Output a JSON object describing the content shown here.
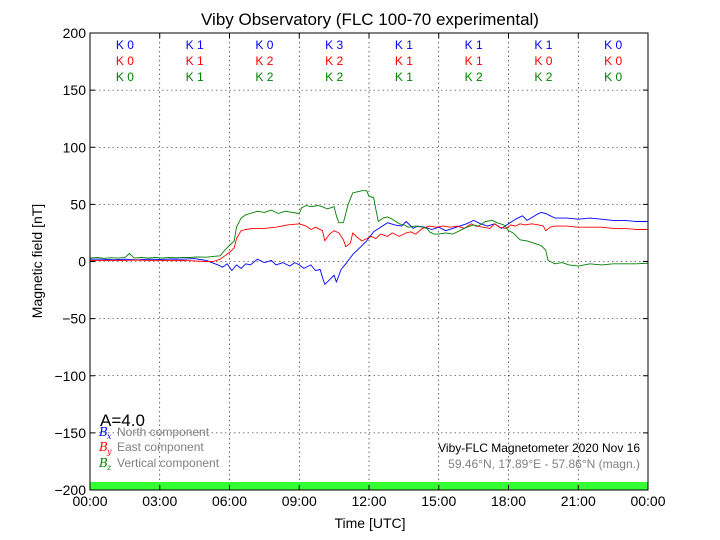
{
  "chart_data": {
    "type": "line",
    "title": "Viby Observatory (FLC 100-70 experimental)",
    "xlabel": "Time [UTC]",
    "ylabel": "Magnetic field [nT]",
    "xlim": [
      0,
      24
    ],
    "ylim": [
      -200,
      200
    ],
    "x_tick_labels": [
      "00:00",
      "03:00",
      "06:00",
      "09:00",
      "12:00",
      "15:00",
      "18:00",
      "21:00",
      "00:00"
    ],
    "y_ticks": [
      200,
      150,
      100,
      50,
      0,
      -50,
      -100,
      -150,
      -200
    ],
    "y_tick_labels": [
      "200",
      "150",
      "100",
      "50",
      "0",
      "−50",
      "−100",
      "−150",
      "−200"
    ],
    "grid": true,
    "series": [
      {
        "name": "North component",
        "symbol": "B",
        "subscript": "x",
        "color": "#0000ff",
        "points": [
          [
            0,
            2
          ],
          [
            0.5,
            2
          ],
          [
            1,
            1.5
          ],
          [
            1.5,
            2
          ],
          [
            2,
            1.5
          ],
          [
            2.5,
            2
          ],
          [
            3,
            1.8
          ],
          [
            3.5,
            2.2
          ],
          [
            4,
            2
          ],
          [
            4.5,
            2.5
          ],
          [
            5,
            1
          ],
          [
            5.5,
            -3
          ],
          [
            5.7,
            -5
          ],
          [
            5.9,
            -2
          ],
          [
            6.1,
            -8
          ],
          [
            6.3,
            -3
          ],
          [
            6.5,
            -6
          ],
          [
            6.7,
            -2
          ],
          [
            6.9,
            -3
          ],
          [
            7.2,
            2
          ],
          [
            7.5,
            -1
          ],
          [
            7.8,
            1
          ],
          [
            8,
            -3
          ],
          [
            8.3,
            -1
          ],
          [
            8.6,
            -4
          ],
          [
            8.8,
            -1
          ],
          [
            9,
            -3
          ],
          [
            9.2,
            -6
          ],
          [
            9.5,
            -3
          ],
          [
            9.7,
            -8
          ],
          [
            9.9,
            -7
          ],
          [
            10,
            -14
          ],
          [
            10.1,
            -20
          ],
          [
            10.3,
            -16
          ],
          [
            10.5,
            -12
          ],
          [
            10.6,
            -18
          ],
          [
            10.8,
            -7
          ],
          [
            11,
            -2
          ],
          [
            11.3,
            6
          ],
          [
            11.6,
            12
          ],
          [
            11.9,
            18
          ],
          [
            12.2,
            26
          ],
          [
            12.5,
            30
          ],
          [
            12.8,
            34
          ],
          [
            13.1,
            32
          ],
          [
            13.4,
            31
          ],
          [
            13.6,
            35
          ],
          [
            13.9,
            29
          ],
          [
            14.1,
            31
          ],
          [
            14.4,
            30
          ],
          [
            14.7,
            28
          ],
          [
            15,
            30
          ],
          [
            15.3,
            27
          ],
          [
            15.6,
            29
          ],
          [
            15.9,
            31
          ],
          [
            16.2,
            33
          ],
          [
            16.5,
            36
          ],
          [
            16.8,
            33
          ],
          [
            17.1,
            31
          ],
          [
            17.4,
            33
          ],
          [
            17.7,
            29
          ],
          [
            18,
            33
          ],
          [
            18.3,
            37
          ],
          [
            18.6,
            40
          ],
          [
            18.8,
            36
          ],
          [
            19.2,
            41
          ],
          [
            19.4,
            43
          ],
          [
            19.6,
            42
          ],
          [
            19.8,
            40
          ],
          [
            20,
            38
          ],
          [
            20.5,
            38
          ],
          [
            21,
            37
          ],
          [
            21.5,
            38
          ],
          [
            22,
            37
          ],
          [
            22.5,
            36
          ],
          [
            23,
            36
          ],
          [
            23.5,
            35
          ],
          [
            24,
            35
          ]
        ]
      },
      {
        "name": "East component",
        "symbol": "B",
        "subscript": "y",
        "color": "#ff0000",
        "points": [
          [
            0,
            1
          ],
          [
            0.5,
            1
          ],
          [
            1,
            0.8
          ],
          [
            1.5,
            1
          ],
          [
            2,
            1.2
          ],
          [
            2.5,
            1
          ],
          [
            3,
            1
          ],
          [
            3.5,
            0.8
          ],
          [
            4,
            1
          ],
          [
            4.5,
            0.5
          ],
          [
            5,
            0
          ],
          [
            5.3,
            0
          ],
          [
            5.6,
            2
          ],
          [
            5.8,
            5
          ],
          [
            6,
            8
          ],
          [
            6.2,
            12
          ],
          [
            6.3,
            20
          ],
          [
            6.5,
            27
          ],
          [
            6.7,
            28
          ],
          [
            7,
            29
          ],
          [
            7.5,
            29
          ],
          [
            8,
            30
          ],
          [
            8.5,
            32
          ],
          [
            9,
            33
          ],
          [
            9.3,
            31
          ],
          [
            9.5,
            28
          ],
          [
            9.7,
            30
          ],
          [
            10,
            27
          ],
          [
            10.1,
            18
          ],
          [
            10.3,
            24
          ],
          [
            10.5,
            27
          ],
          [
            10.7,
            25
          ],
          [
            10.9,
            19
          ],
          [
            11,
            13
          ],
          [
            11.2,
            16
          ],
          [
            11.3,
            25
          ],
          [
            11.5,
            21
          ],
          [
            11.7,
            18
          ],
          [
            11.9,
            20
          ],
          [
            12.1,
            22
          ],
          [
            12.3,
            20
          ],
          [
            12.5,
            24
          ],
          [
            12.8,
            22
          ],
          [
            13,
            25
          ],
          [
            13.3,
            22
          ],
          [
            13.6,
            25
          ],
          [
            13.8,
            26
          ],
          [
            14,
            24
          ],
          [
            14.3,
            29
          ],
          [
            14.6,
            31
          ],
          [
            14.9,
            30
          ],
          [
            15.2,
            31
          ],
          [
            15.5,
            30
          ],
          [
            15.8,
            31
          ],
          [
            16.1,
            29
          ],
          [
            16.4,
            33
          ],
          [
            16.6,
            31
          ],
          [
            16.9,
            30
          ],
          [
            17.2,
            29
          ],
          [
            17.4,
            33
          ],
          [
            17.6,
            30
          ],
          [
            17.9,
            29
          ],
          [
            18.1,
            32
          ],
          [
            18.3,
            31
          ],
          [
            18.5,
            33
          ],
          [
            18.7,
            32
          ],
          [
            19,
            33
          ],
          [
            19.3,
            32
          ],
          [
            19.5,
            31
          ],
          [
            19.6,
            27
          ],
          [
            19.8,
            30
          ],
          [
            20,
            31
          ],
          [
            20.5,
            31
          ],
          [
            21,
            30
          ],
          [
            21.5,
            30
          ],
          [
            22,
            30
          ],
          [
            22.5,
            29
          ],
          [
            23,
            29
          ],
          [
            23.5,
            28
          ],
          [
            24,
            28
          ]
        ]
      },
      {
        "name": "Vertical component",
        "symbol": "B",
        "subscript": "z",
        "color": "#008000",
        "points": [
          [
            0,
            3
          ],
          [
            0.3,
            3.5
          ],
          [
            0.6,
            2.8
          ],
          [
            0.9,
            3.2
          ],
          [
            1.2,
            3
          ],
          [
            1.5,
            3.4
          ],
          [
            1.7,
            7
          ],
          [
            1.9,
            3
          ],
          [
            2.2,
            3.5
          ],
          [
            2.5,
            3
          ],
          [
            2.8,
            3.5
          ],
          [
            3.1,
            3
          ],
          [
            3.4,
            3.6
          ],
          [
            3.7,
            3.2
          ],
          [
            4,
            3.6
          ],
          [
            4.3,
            3.5
          ],
          [
            4.6,
            4
          ],
          [
            5,
            3.8
          ],
          [
            5.3,
            4.5
          ],
          [
            5.6,
            5
          ],
          [
            5.8,
            10
          ],
          [
            6,
            14
          ],
          [
            6.2,
            18
          ],
          [
            6.3,
            30
          ],
          [
            6.5,
            38
          ],
          [
            6.7,
            41
          ],
          [
            6.9,
            42
          ],
          [
            7.2,
            44
          ],
          [
            7.5,
            43
          ],
          [
            7.8,
            45
          ],
          [
            8.1,
            42
          ],
          [
            8.4,
            44
          ],
          [
            8.7,
            43
          ],
          [
            9,
            42
          ],
          [
            9.1,
            47
          ],
          [
            9.3,
            49
          ],
          [
            9.5,
            48
          ],
          [
            9.8,
            49
          ],
          [
            10,
            48
          ],
          [
            10.2,
            46
          ],
          [
            10.5,
            48
          ],
          [
            10.6,
            40
          ],
          [
            10.7,
            34
          ],
          [
            10.9,
            34
          ],
          [
            11.1,
            50
          ],
          [
            11.3,
            60
          ],
          [
            11.5,
            61
          ],
          [
            11.7,
            62
          ],
          [
            11.9,
            62
          ],
          [
            12,
            57
          ],
          [
            12.2,
            56
          ],
          [
            12.3,
            45
          ],
          [
            12.4,
            35
          ],
          [
            12.6,
            38
          ],
          [
            12.8,
            39
          ],
          [
            13,
            37
          ],
          [
            13.3,
            33
          ],
          [
            13.5,
            32
          ],
          [
            13.7,
            30
          ],
          [
            14,
            31
          ],
          [
            14.3,
            30
          ],
          [
            14.5,
            29
          ],
          [
            14.6,
            26
          ],
          [
            14.8,
            24
          ],
          [
            15,
            24
          ],
          [
            15.3,
            25
          ],
          [
            15.6,
            24
          ],
          [
            15.9,
            27
          ],
          [
            16.2,
            30
          ],
          [
            16.5,
            32
          ],
          [
            16.7,
            31
          ],
          [
            17,
            35
          ],
          [
            17.3,
            36
          ],
          [
            17.5,
            34
          ],
          [
            17.8,
            32
          ],
          [
            18,
            27
          ],
          [
            18.2,
            25
          ],
          [
            18.5,
            19
          ],
          [
            18.8,
            18
          ],
          [
            19.1,
            16
          ],
          [
            19.4,
            14
          ],
          [
            19.6,
            10
          ],
          [
            19.7,
            1
          ],
          [
            20,
            -2
          ],
          [
            20.3,
            -1
          ],
          [
            20.6,
            -3
          ],
          [
            21,
            -4
          ],
          [
            21.5,
            -2
          ],
          [
            22,
            -3
          ],
          [
            22.5,
            -2
          ],
          [
            23,
            -2
          ],
          [
            23.5,
            -2
          ],
          [
            24,
            -1.5
          ]
        ]
      }
    ],
    "k_indices": {
      "north": [
        "K 0",
        "K 1",
        "K 0",
        "K 3",
        "K 1",
        "K 1",
        "K 1",
        "K 0"
      ],
      "east": [
        "K 0",
        "K 1",
        "K 2",
        "K 2",
        "K 1",
        "K 1",
        "K 0",
        "K 0"
      ],
      "vertical": [
        "K 0",
        "K 1",
        "K 2",
        "K 2",
        "K 1",
        "K 2",
        "K 2",
        "K 0"
      ]
    },
    "a_index_label": "A=4.0",
    "info_line1": "Viby-FLC Magnetometer 2020 Nov 16",
    "info_line2": "59.46°N, 17.89°E - 57.86°N (magn.)",
    "activity_bar_color": "#33ff33"
  }
}
